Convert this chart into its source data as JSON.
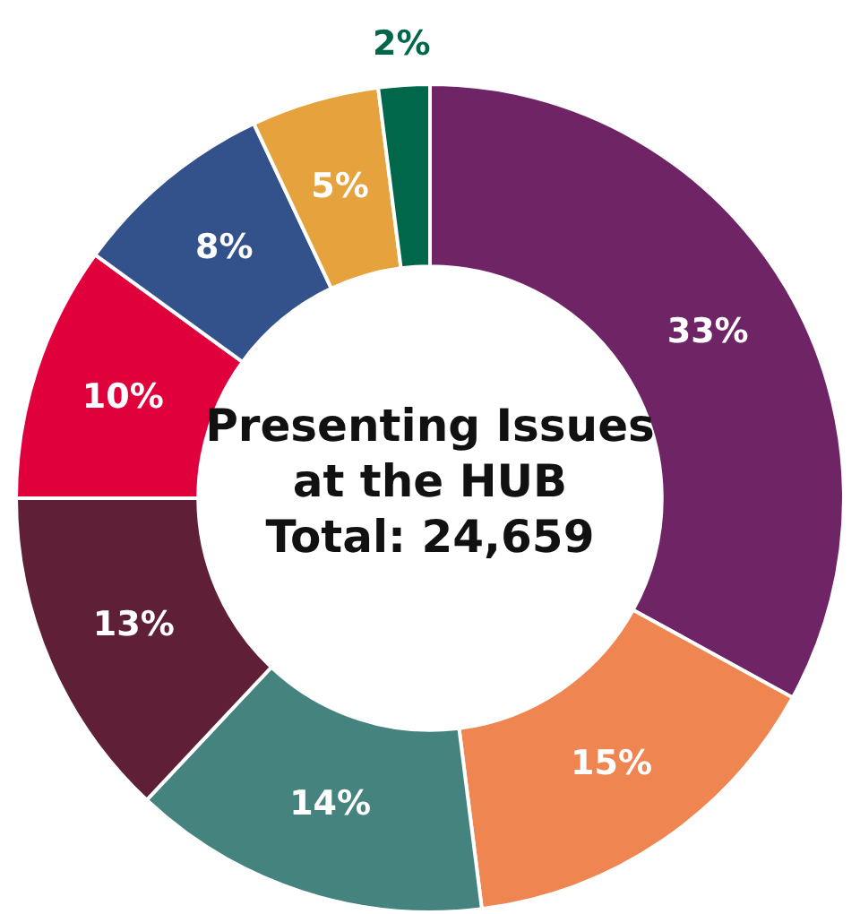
{
  "chart_data": {
    "type": "donut",
    "title": "Presenting Issues at the HUB",
    "subtitle": "Total: 24,659",
    "categories": [
      null,
      null,
      null,
      null,
      null,
      null,
      null,
      null
    ],
    "values": [
      33,
      15,
      14,
      13,
      10,
      8,
      5,
      2
    ],
    "colors": [
      "#6f2466",
      "#ef8550",
      "#45837f",
      "#5e1f37",
      "#e0003c",
      "#33518a",
      "#e5a23d",
      "#00674a"
    ],
    "value_labels": [
      "33%",
      "15%",
      "14%",
      "13%",
      "10%",
      "8%",
      "5%",
      "2%"
    ],
    "legend": false
  }
}
